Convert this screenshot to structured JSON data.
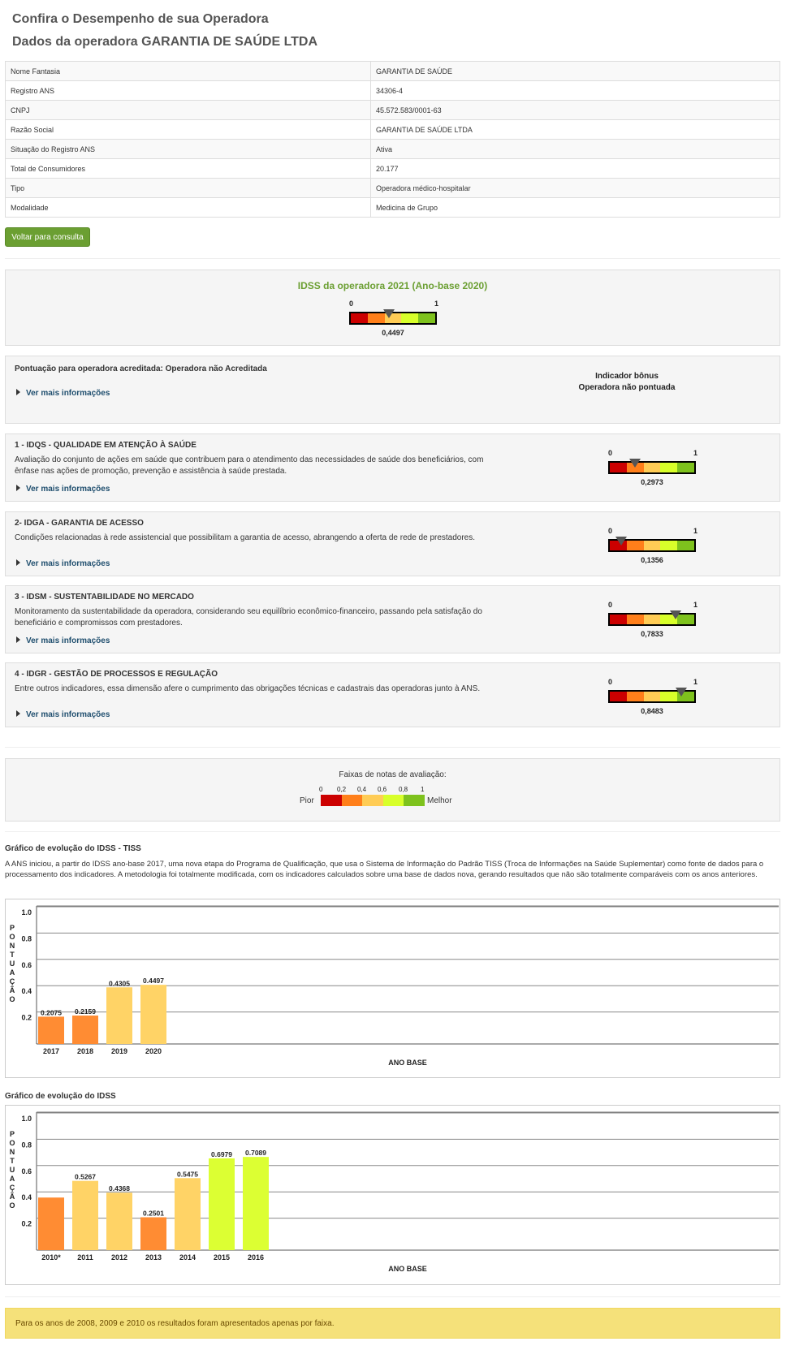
{
  "header": {
    "title": "Confira o Desempenho de sua Operadora",
    "subtitle": "Dados da operadora GARANTIA DE SAÚDE LTDA"
  },
  "info": [
    {
      "label": "Nome Fantasia",
      "value": "GARANTIA DE SAÚDE"
    },
    {
      "label": "Registro ANS",
      "value": "34306-4"
    },
    {
      "label": "CNPJ",
      "value": "45.572.583/0001-63"
    },
    {
      "label": "Razão Social",
      "value": "GARANTIA DE SAÚDE LTDA"
    },
    {
      "label": "Situação do Registro ANS",
      "value": "Ativa"
    },
    {
      "label": "Total de Consumidores",
      "value": "20.177"
    },
    {
      "label": "Tipo",
      "value": "Operadora médico-hospitalar"
    },
    {
      "label": "Modalidade",
      "value": "Medicina de Grupo"
    }
  ],
  "back_button": "Voltar para consulta",
  "gauge_min": "0",
  "gauge_max": "1",
  "colors": {
    "band1": "#cc0000",
    "band2": "#ff7f1a",
    "band3": "#ffcc55",
    "band4": "#d8ff2a",
    "band5": "#7ec21d",
    "accent": "#6b9f32"
  },
  "idss": {
    "title": "IDSS da operadora 2021 (Ano-base 2020)",
    "value": "0,4497",
    "score": 0.4497
  },
  "accreditation": {
    "text": "Pontuação para operadora acreditada: Operadora não Acreditada",
    "more": "Ver mais informações",
    "bonus_title": "Indicador bônus",
    "bonus_value": "Operadora não pontuada"
  },
  "dimensions": [
    {
      "title": "1 - IDQS - QUALIDADE EM ATENÇÃO À SAÚDE",
      "desc": "Avaliação do conjunto de ações em saúde que contribuem para o atendimento das necessidades de saúde dos beneficiários, com ênfase nas ações de promoção, prevenção e assistência à saúde prestada.",
      "more": "Ver mais informações",
      "value": "0,2973",
      "score": 0.2973
    },
    {
      "title": "2- IDGA - GARANTIA DE ACESSO",
      "desc": "Condições relacionadas à rede assistencial que possibilitam a garantia de acesso, abrangendo a oferta de rede de prestadores.",
      "more": "Ver mais informações",
      "value": "0,1356",
      "score": 0.1356
    },
    {
      "title": "3 - IDSM - SUSTENTABILIDADE NO MERCADO",
      "desc": "Monitoramento da sustentabilidade da operadora, considerando seu equilíbrio econômico-financeiro, passando pela satisfação do beneficiário e compromissos com prestadores.",
      "more": "Ver mais informações",
      "value": "0,7833",
      "score": 0.7833
    },
    {
      "title": "4 - IDGR - GESTÃO DE PROCESSOS E REGULAÇÃO",
      "desc": "Entre outros indicadores, essa dimensão afere o cumprimento das obrigações técnicas e cadastrais das operadoras junto à ANS.",
      "more": "Ver mais informações",
      "value": "0,8483",
      "score": 0.8483
    }
  ],
  "legend": {
    "title": "Faixas de notas de avaliação:",
    "ticks": [
      "0",
      "0,2",
      "0,4",
      "0,6",
      "0,8",
      "1"
    ],
    "worst": "Pior",
    "best": "Melhor"
  },
  "tiss_section": {
    "title": "Gráfico de evolução do IDSS - TISS",
    "paragraph": "A ANS iniciou, a partir do IDSS ano-base 2017, uma nova etapa do Programa de Qualificação, que usa o Sistema de Informação do Padrão TISS (Troca de Informações na Saúde Suplementar) como fonte de dados para o processamento dos indicadores. A metodologia foi totalmente modificada, com os indicadores calculados sobre uma base de dados nova, gerando resultados que não são totalmente comparáveis com os anos anteriores."
  },
  "idss_section": {
    "title": "Gráfico de evolução do IDSS"
  },
  "chart_data": [
    {
      "type": "bar",
      "ylabel": "PONTUAÇÃO",
      "xlabel": "ANO BASE",
      "ylim": [
        0,
        1.0
      ],
      "yticks": [
        "0.2",
        "0.4",
        "0.6",
        "0.8",
        "1.0"
      ],
      "grid": true,
      "categories": [
        "2017",
        "2018",
        "2019",
        "2020"
      ],
      "values": [
        0.2075,
        0.2159,
        0.4305,
        0.4497
      ],
      "labels": [
        "0.2075",
        "0.2159",
        "0.4305",
        "0.4497"
      ],
      "colors": [
        "#ff8c33",
        "#ff8c33",
        "#ffd366",
        "#ffd366"
      ]
    },
    {
      "type": "bar",
      "ylabel": "PONTUAÇÃO",
      "xlabel": "ANO BASE",
      "ylim": [
        0,
        1.0
      ],
      "yticks": [
        "0.2",
        "0.4",
        "0.6",
        "0.8",
        "1.0"
      ],
      "grid": true,
      "categories": [
        "2010*",
        "2011",
        "2012",
        "2013",
        "2014",
        "2015",
        "2016"
      ],
      "values": [
        0.4,
        0.5267,
        0.4368,
        0.2501,
        0.5475,
        0.6979,
        0.7089
      ],
      "labels": [
        "",
        "0.5267",
        "0.4368",
        "0.2501",
        "0.5475",
        "0.6979",
        "0.7089"
      ],
      "colors": [
        "#ff8c33",
        "#ffd366",
        "#ffd366",
        "#ff8c33",
        "#ffd366",
        "#dcff33",
        "#dcff33"
      ]
    }
  ],
  "footnote": "Para os anos de 2008, 2009 e 2010 os resultados foram apresentados apenas por faixa."
}
